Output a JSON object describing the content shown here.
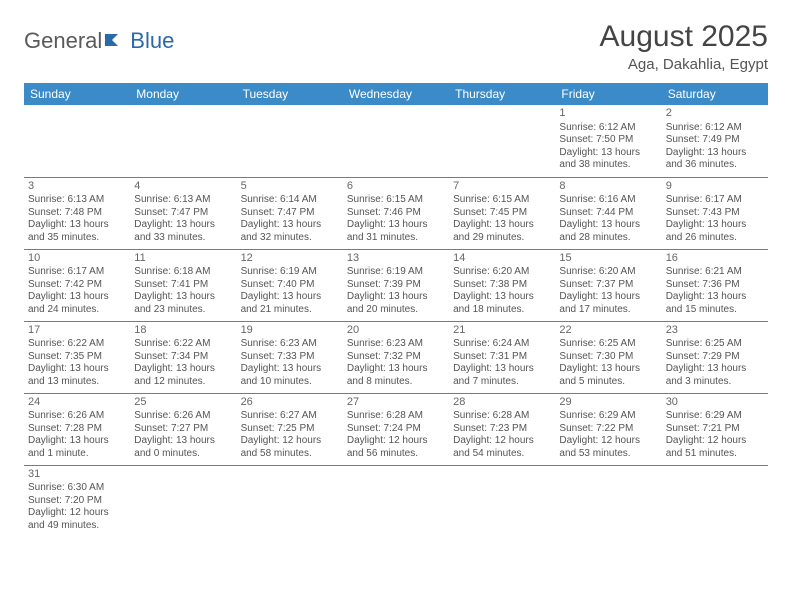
{
  "logo": {
    "text1": "General",
    "text2": "Blue"
  },
  "title": "August 2025",
  "location": "Aga, Dakahlia, Egypt",
  "colors": {
    "header_bg": "#3b8bc8",
    "header_text": "#ffffff",
    "rule": "#3b8bc8",
    "body_text": "#555555",
    "title_text": "#444444",
    "logo_gray": "#5a5a5a",
    "logo_blue": "#2b6aa8"
  },
  "weekdays": [
    "Sunday",
    "Monday",
    "Tuesday",
    "Wednesday",
    "Thursday",
    "Friday",
    "Saturday"
  ],
  "grid": [
    [
      null,
      null,
      null,
      null,
      null,
      {
        "d": "1",
        "sr": "6:12 AM",
        "ss": "7:50 PM",
        "dl": "13 hours and 38 minutes."
      },
      {
        "d": "2",
        "sr": "6:12 AM",
        "ss": "7:49 PM",
        "dl": "13 hours and 36 minutes."
      }
    ],
    [
      {
        "d": "3",
        "sr": "6:13 AM",
        "ss": "7:48 PM",
        "dl": "13 hours and 35 minutes."
      },
      {
        "d": "4",
        "sr": "6:13 AM",
        "ss": "7:47 PM",
        "dl": "13 hours and 33 minutes."
      },
      {
        "d": "5",
        "sr": "6:14 AM",
        "ss": "7:47 PM",
        "dl": "13 hours and 32 minutes."
      },
      {
        "d": "6",
        "sr": "6:15 AM",
        "ss": "7:46 PM",
        "dl": "13 hours and 31 minutes."
      },
      {
        "d": "7",
        "sr": "6:15 AM",
        "ss": "7:45 PM",
        "dl": "13 hours and 29 minutes."
      },
      {
        "d": "8",
        "sr": "6:16 AM",
        "ss": "7:44 PM",
        "dl": "13 hours and 28 minutes."
      },
      {
        "d": "9",
        "sr": "6:17 AM",
        "ss": "7:43 PM",
        "dl": "13 hours and 26 minutes."
      }
    ],
    [
      {
        "d": "10",
        "sr": "6:17 AM",
        "ss": "7:42 PM",
        "dl": "13 hours and 24 minutes."
      },
      {
        "d": "11",
        "sr": "6:18 AM",
        "ss": "7:41 PM",
        "dl": "13 hours and 23 minutes."
      },
      {
        "d": "12",
        "sr": "6:19 AM",
        "ss": "7:40 PM",
        "dl": "13 hours and 21 minutes."
      },
      {
        "d": "13",
        "sr": "6:19 AM",
        "ss": "7:39 PM",
        "dl": "13 hours and 20 minutes."
      },
      {
        "d": "14",
        "sr": "6:20 AM",
        "ss": "7:38 PM",
        "dl": "13 hours and 18 minutes."
      },
      {
        "d": "15",
        "sr": "6:20 AM",
        "ss": "7:37 PM",
        "dl": "13 hours and 17 minutes."
      },
      {
        "d": "16",
        "sr": "6:21 AM",
        "ss": "7:36 PM",
        "dl": "13 hours and 15 minutes."
      }
    ],
    [
      {
        "d": "17",
        "sr": "6:22 AM",
        "ss": "7:35 PM",
        "dl": "13 hours and 13 minutes."
      },
      {
        "d": "18",
        "sr": "6:22 AM",
        "ss": "7:34 PM",
        "dl": "13 hours and 12 minutes."
      },
      {
        "d": "19",
        "sr": "6:23 AM",
        "ss": "7:33 PM",
        "dl": "13 hours and 10 minutes."
      },
      {
        "d": "20",
        "sr": "6:23 AM",
        "ss": "7:32 PM",
        "dl": "13 hours and 8 minutes."
      },
      {
        "d": "21",
        "sr": "6:24 AM",
        "ss": "7:31 PM",
        "dl": "13 hours and 7 minutes."
      },
      {
        "d": "22",
        "sr": "6:25 AM",
        "ss": "7:30 PM",
        "dl": "13 hours and 5 minutes."
      },
      {
        "d": "23",
        "sr": "6:25 AM",
        "ss": "7:29 PM",
        "dl": "13 hours and 3 minutes."
      }
    ],
    [
      {
        "d": "24",
        "sr": "6:26 AM",
        "ss": "7:28 PM",
        "dl": "13 hours and 1 minute."
      },
      {
        "d": "25",
        "sr": "6:26 AM",
        "ss": "7:27 PM",
        "dl": "13 hours and 0 minutes."
      },
      {
        "d": "26",
        "sr": "6:27 AM",
        "ss": "7:25 PM",
        "dl": "12 hours and 58 minutes."
      },
      {
        "d": "27",
        "sr": "6:28 AM",
        "ss": "7:24 PM",
        "dl": "12 hours and 56 minutes."
      },
      {
        "d": "28",
        "sr": "6:28 AM",
        "ss": "7:23 PM",
        "dl": "12 hours and 54 minutes."
      },
      {
        "d": "29",
        "sr": "6:29 AM",
        "ss": "7:22 PM",
        "dl": "12 hours and 53 minutes."
      },
      {
        "d": "30",
        "sr": "6:29 AM",
        "ss": "7:21 PM",
        "dl": "12 hours and 51 minutes."
      }
    ],
    [
      {
        "d": "31",
        "sr": "6:30 AM",
        "ss": "7:20 PM",
        "dl": "12 hours and 49 minutes."
      },
      null,
      null,
      null,
      null,
      null,
      null
    ]
  ],
  "labels": {
    "sunrise": "Sunrise: ",
    "sunset": "Sunset: ",
    "daylight": "Daylight: "
  }
}
